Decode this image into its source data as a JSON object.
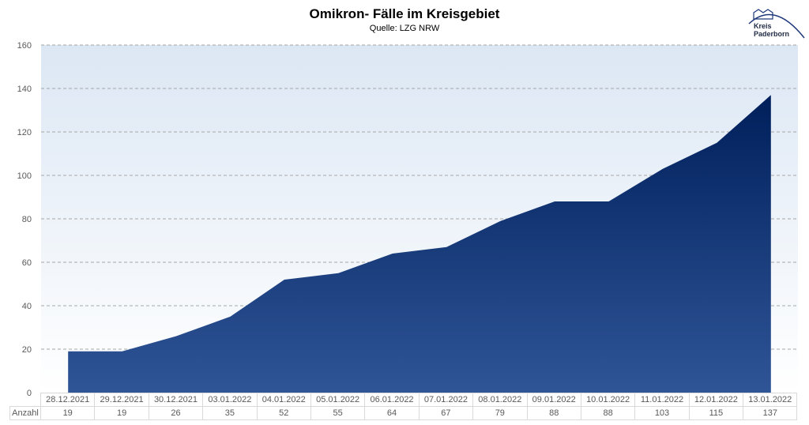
{
  "header": {
    "title": "Omikron- Fälle im Kreisgebiet",
    "subtitle": "Quelle: LZG NRW",
    "logo_text_line1": "Kreis",
    "logo_text_line2": "Paderborn"
  },
  "colors": {
    "area_top": "#001f5b",
    "area_bottom": "#2f5597",
    "plot_bg_top": "#dce7f4",
    "plot_bg_bottom": "#ffffff",
    "grid": "#a6a6a6"
  },
  "table": {
    "row_label": "Anzahl"
  },
  "chart_data": {
    "type": "area",
    "title": "Omikron- Fälle im Kreisgebiet",
    "subtitle": "Quelle: LZG NRW",
    "xlabel": "",
    "ylabel": "",
    "ylim": [
      0,
      160
    ],
    "yticks": [
      0,
      20,
      40,
      60,
      80,
      100,
      120,
      140,
      160
    ],
    "grid": true,
    "legend": "none (data table below chart)",
    "categories": [
      "28.12.2021",
      "29.12.2021",
      "30.12.2021",
      "03.01.2022",
      "04.01.2022",
      "05.01.2022",
      "06.01.2022",
      "07.01.2022",
      "08.01.2022",
      "09.01.2022",
      "10.01.2022",
      "11.01.2022",
      "12.01.2022",
      "13.01.2022"
    ],
    "series": [
      {
        "name": "Anzahl",
        "values": [
          19,
          19,
          26,
          35,
          52,
          55,
          64,
          67,
          79,
          88,
          88,
          103,
          115,
          137
        ]
      }
    ]
  }
}
